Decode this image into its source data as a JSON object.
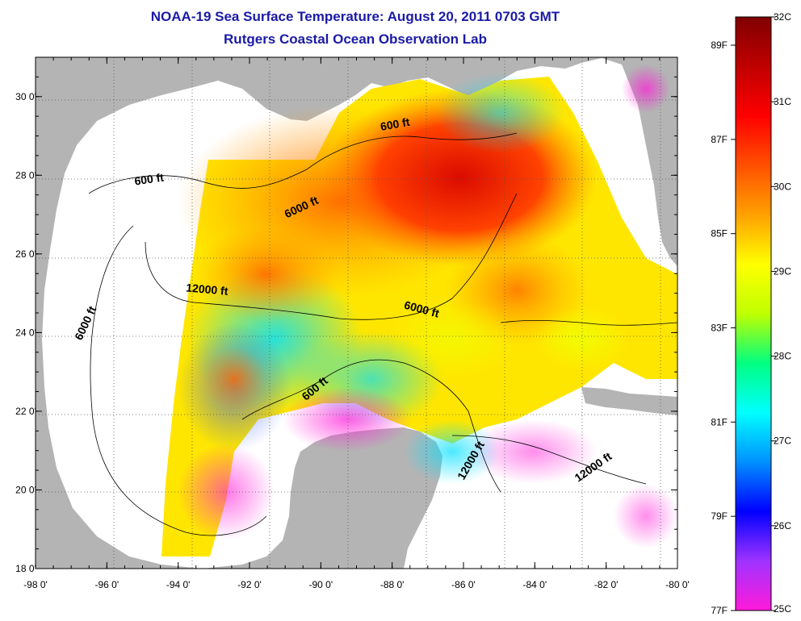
{
  "title": "NOAA-19 Sea Surface Temperature:  August 20, 2011 0703 GMT",
  "subtitle": "Rutgers Coastal Ocean Observation Lab",
  "map": {
    "lon_ticks": [
      "-98 0'",
      "-96 0'",
      "-94 0'",
      "-92 0'",
      "-90 0'",
      "-88 0'",
      "-86 0'",
      "-84 0'",
      "-82 0'",
      "-80 0'"
    ],
    "lat_ticks": [
      "30 0'",
      "28 0'",
      "26 0'",
      "24 0'",
      "22 0'",
      "20 0'",
      "18 0'"
    ],
    "lon_range": [
      -98,
      -80
    ],
    "lat_range": [
      18,
      31
    ],
    "contour_labels": [
      {
        "text": "600 ft",
        "lon": -94.8,
        "lat": 27.8,
        "angle": -8
      },
      {
        "text": "600 ft",
        "lon": -87.9,
        "lat": 29.2,
        "angle": -10
      },
      {
        "text": "6000 ft",
        "lon": -90.5,
        "lat": 27.1,
        "angle": -25
      },
      {
        "text": "6000 ft",
        "lon": -96.5,
        "lat": 24.2,
        "angle": -65
      },
      {
        "text": "6000 ft",
        "lon": -87.2,
        "lat": 24.5,
        "angle": 15
      },
      {
        "text": "12000 ft",
        "lon": -93.2,
        "lat": 25.0,
        "angle": 5
      },
      {
        "text": "600 ft",
        "lon": -90.1,
        "lat": 22.5,
        "angle": -40
      },
      {
        "text": "12000 ft",
        "lon": -85.7,
        "lat": 20.7,
        "angle": -60
      },
      {
        "text": "12000 ft",
        "lon": -82.3,
        "lat": 20.5,
        "angle": -35
      }
    ]
  },
  "colorbar": {
    "celsius_labels": [
      "32C",
      "31C",
      "30C",
      "29C",
      "28C",
      "27C",
      "26C",
      "25C"
    ],
    "fahrenheit_labels": [
      "89F",
      "87F",
      "85F",
      "83F",
      "81F",
      "79F",
      "77F"
    ],
    "celsius_range": [
      25,
      32
    ],
    "stops": [
      "#ff1ad9",
      "#a033ff",
      "#0000ff",
      "#0090ff",
      "#00ffff",
      "#00ff80",
      "#c0ff00",
      "#ffff00",
      "#ffa000",
      "#ff5000",
      "#ff0000",
      "#c00000",
      "#800000"
    ]
  },
  "colors": {
    "land": "#b4b4b4",
    "no_data": "#ffffff",
    "title": "#1a1aa6"
  }
}
